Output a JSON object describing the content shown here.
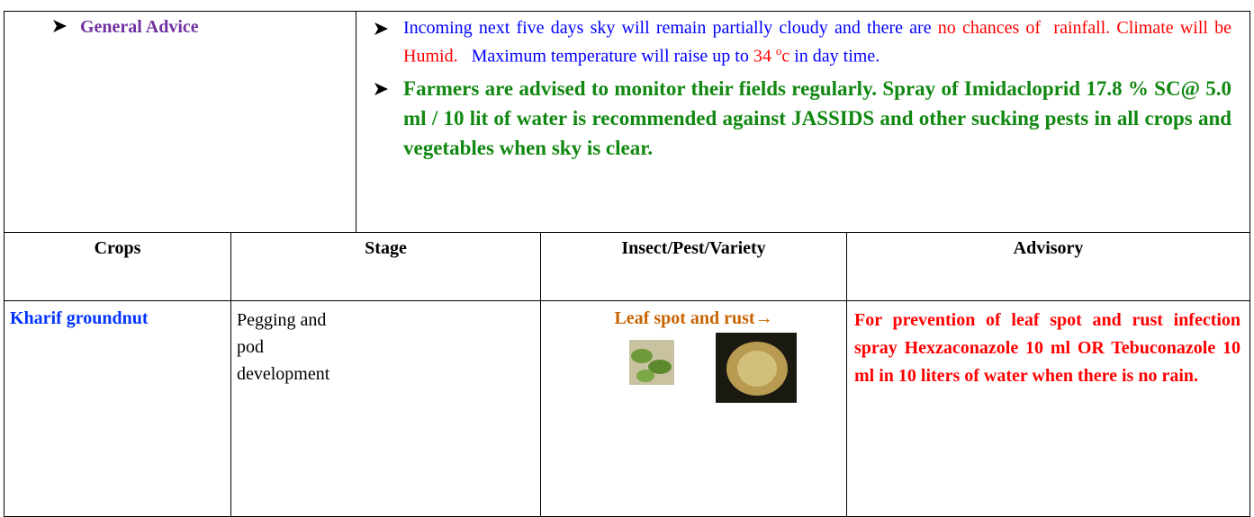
{
  "general_advice": {
    "label": "General Advice",
    "items": [
      {
        "segments": [
          {
            "text": "Incoming next five days sky will remain partially cloudy and there are ",
            "color": "#0000ff"
          },
          {
            "text": "no chances of  rainfall. Climate will be Humid.",
            "color": "#ff0000"
          },
          {
            "text": "   Maximum temperature will raise up to ",
            "color": "#0000ff"
          },
          {
            "text": "34 ",
            "color": "#ff0000"
          },
          {
            "text": "o",
            "color": "#ff0000",
            "sup": true
          },
          {
            "text": "c",
            "color": "#ff0000"
          },
          {
            "text": " in day time.",
            "color": "#0000ff"
          }
        ]
      },
      {
        "segments": [
          {
            "text": "Farmers are advised to monitor their fields regularly. Spray of Imidacloprid 17.8 % SC@ 5.0 ml / 10 lit of water is recommended against JASSIDS and other sucking pests in all crops and vegetables when sky is clear.",
            "color": "#118811",
            "bold": true
          }
        ]
      }
    ]
  },
  "table": {
    "headers": [
      "Crops",
      "Stage",
      "Insect/Pest/Variety",
      "Advisory"
    ],
    "rows": [
      [
        "Kharif groundnut",
        "Pegging and pod development",
        "Leaf spot and rust→",
        "For prevention of leaf spot and rust infection spray Hexzaconazole 10 ml OR Tebuconazole 10 ml in 10 liters of water when there is no rain."
      ]
    ]
  }
}
